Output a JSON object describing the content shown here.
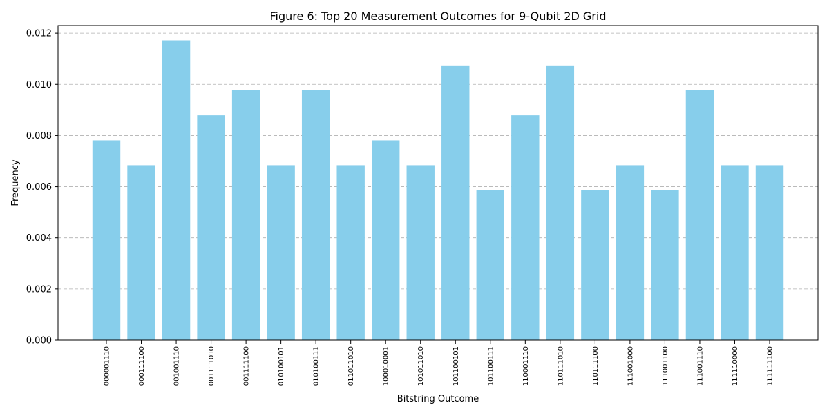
{
  "chart_data": {
    "type": "bar",
    "title": "Figure 6: Top 20 Measurement Outcomes for 9-Qubit 2D Grid",
    "xlabel": "Bitstring Outcome",
    "ylabel": "Frequency",
    "categories": [
      "000001110",
      "000111100",
      "001001110",
      "001111010",
      "001111100",
      "010100101",
      "010100111",
      "011011010",
      "100010001",
      "101011010",
      "101100101",
      "101100111",
      "110001110",
      "110111010",
      "110111100",
      "111001000",
      "111001100",
      "111001110",
      "111110000",
      "111111100"
    ],
    "values": [
      0.00781,
      0.00684,
      0.01172,
      0.00879,
      0.00977,
      0.00684,
      0.00977,
      0.00684,
      0.00781,
      0.00684,
      0.01074,
      0.00586,
      0.00879,
      0.01074,
      0.00586,
      0.00684,
      0.00586,
      0.00977,
      0.00684,
      0.00684
    ],
    "ylim": [
      0,
      0.0123
    ],
    "yticks": [
      "0.000",
      "0.002",
      "0.004",
      "0.006",
      "0.008",
      "0.010",
      "0.012"
    ],
    "ytick_values": [
      0,
      0.002,
      0.004,
      0.006,
      0.008,
      0.01,
      0.012
    ],
    "bar_color": "#87ceeb",
    "grid": "y-dashed",
    "legend": "none"
  }
}
